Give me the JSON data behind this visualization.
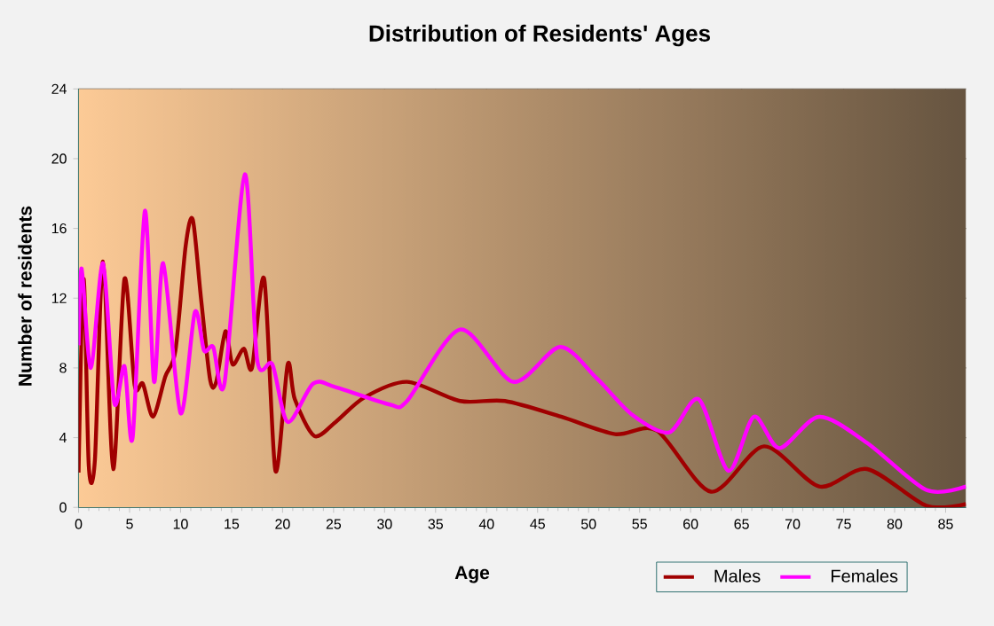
{
  "chart_data": {
    "type": "line",
    "title": "Distribution of Residents' Ages",
    "xlabel": "Age",
    "ylabel": "Number of residents",
    "xlim": [
      0,
      87
    ],
    "ylim": [
      0,
      24
    ],
    "xticks": [
      0,
      5,
      10,
      15,
      20,
      25,
      30,
      35,
      40,
      45,
      50,
      55,
      60,
      65,
      70,
      75,
      80,
      85
    ],
    "yticks": [
      0,
      4,
      8,
      12,
      16,
      20,
      24
    ],
    "grid": true,
    "legend": "bottom right",
    "marker": "none",
    "line_style": "solid",
    "series": [
      {
        "name": "Males",
        "color": "#a00000",
        "x": [
          0,
          0.5,
          1,
          1.6,
          2.4,
          3.4,
          4.5,
          5.5,
          6.3,
          7.3,
          8.5,
          9.5,
          10.5,
          11.2,
          12,
          12.9,
          13.5,
          14.4,
          15.1,
          16.2,
          17,
          18.2,
          19.3,
          20.5,
          21.2,
          23.1,
          25.2,
          28,
          32.2,
          37.4,
          41.8,
          47.3,
          52.6,
          56.7,
          62,
          67.2,
          72.6,
          77.3,
          83.1,
          87
        ],
        "values": [
          2.0,
          13.1,
          2.4,
          2.7,
          14.1,
          2.2,
          13.1,
          7.0,
          7.1,
          5.2,
          7.5,
          9.0,
          15.0,
          16.5,
          12.0,
          7.3,
          7.2,
          10.1,
          8.2,
          9.1,
          8.0,
          13.1,
          2.1,
          8.2,
          6.2,
          4.1,
          4.9,
          6.3,
          7.2,
          6.1,
          6.1,
          5.2,
          4.2,
          4.4,
          0.9,
          3.5,
          1.2,
          2.2,
          0.1,
          0.2
        ]
      },
      {
        "name": "Females",
        "color": "#ff00ff",
        "x": [
          0,
          0.3,
          1.2,
          2.4,
          3.5,
          4.5,
          5.3,
          6.5,
          7.4,
          8.3,
          10,
          11.4,
          12.3,
          13.2,
          14.3,
          16.3,
          17.5,
          19,
          20.5,
          23,
          25.2,
          30.5,
          32.2,
          37.4,
          42.6,
          47.2,
          50.8,
          54.3,
          57.9,
          60.8,
          63.7,
          66.2,
          68.7,
          72.6,
          77.3,
          83.1,
          87
        ],
        "values": [
          9.3,
          13.7,
          8.0,
          14.0,
          6.0,
          8.1,
          4.0,
          17.0,
          7.2,
          14.0,
          5.4,
          11.2,
          9.0,
          9.2,
          7.1,
          19.1,
          8.5,
          8.2,
          4.9,
          7.1,
          6.9,
          5.9,
          6.1,
          10.2,
          7.2,
          9.2,
          7.4,
          5.3,
          4.3,
          6.2,
          2.1,
          5.2,
          3.4,
          5.2,
          3.7,
          1.0,
          1.2
        ]
      }
    ]
  }
}
